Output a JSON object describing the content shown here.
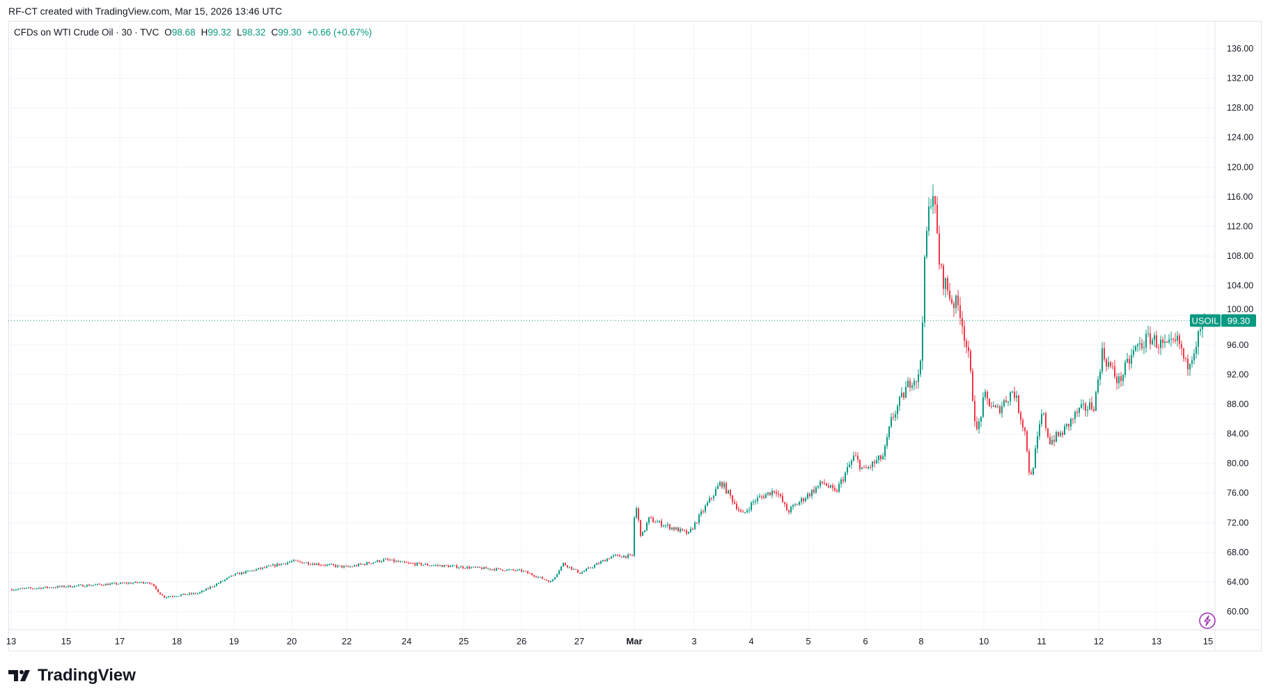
{
  "credit": "RF-CT created with TradingView.com, Mar 15, 2026 13:46 UTC",
  "legend": {
    "symbol": "CFDs on WTI Crude Oil · 30 · TVC",
    "open_label": "O",
    "open": "98.68",
    "high_label": "H",
    "high": "99.32",
    "low_label": "L",
    "low": "98.32",
    "close_label": "C",
    "close": "99.30",
    "change": "+0.66 (+0.67%)"
  },
  "logo": "TradingView",
  "colors": {
    "up": "#089981",
    "down": "#f23645",
    "grid": "#f0f3fa",
    "axis_text": "#131722",
    "alert_icon": "#9c27b0"
  },
  "icons": [
    "lightning-icon",
    "tradingview-logo-icon"
  ],
  "chart_data": {
    "type": "candlestick",
    "interval": "30",
    "symbol": "USOIL",
    "last_price": 99.3,
    "last_price_label": "99.30",
    "price_line": "dotted",
    "grid": true,
    "ylim": [
      58,
      138
    ],
    "y_ticks": [
      "136.00",
      "132.00",
      "128.00",
      "124.00",
      "120.00",
      "116.00",
      "112.00",
      "108.00",
      "104.00",
      "100.00",
      "96.00",
      "92.00",
      "88.00",
      "84.00",
      "80.00",
      "76.00",
      "72.00",
      "68.00",
      "64.00",
      "60.00"
    ],
    "x_ticks": [
      {
        "label": "13",
        "t": "Feb 13 00:00"
      },
      {
        "label": "15",
        "t": "Feb 15 00:00"
      },
      {
        "label": "17",
        "t": "Feb 17 00:00"
      },
      {
        "label": "18",
        "t": "Feb 18 00:00"
      },
      {
        "label": "19",
        "t": "Feb 19 00:00"
      },
      {
        "label": "20",
        "t": "Feb 20 00:00"
      },
      {
        "label": "22",
        "t": "Feb 22 00:00"
      },
      {
        "label": "24",
        "t": "Feb 24 00:00"
      },
      {
        "label": "25",
        "t": "Feb 25 00:00"
      },
      {
        "label": "26",
        "t": "Feb 26 00:00"
      },
      {
        "label": "27",
        "t": "Feb 27 00:00"
      },
      {
        "label": "Mar",
        "t": "Mar 01 00:00"
      },
      {
        "label": "3",
        "t": "Mar 03 00:00"
      },
      {
        "label": "4",
        "t": "Mar 04 00:00"
      },
      {
        "label": "5",
        "t": "Mar 05 00:00"
      },
      {
        "label": "6",
        "t": "Mar 06 00:00"
      },
      {
        "label": "8",
        "t": "Mar 08 00:00"
      },
      {
        "label": "10",
        "t": "Mar 10 00:00"
      },
      {
        "label": "11",
        "t": "Mar 11 00:00"
      },
      {
        "label": "12",
        "t": "Mar 12 00:00"
      },
      {
        "label": "13",
        "t": "Mar 13 00:00"
      },
      {
        "label": "15",
        "t": "Mar 15 00:00"
      }
    ],
    "price_path": [
      [
        "Feb 13 00:00",
        63.0
      ],
      [
        "Feb 17 00:00",
        63.8
      ],
      [
        "Feb 17 12:00",
        64.0
      ],
      [
        "Feb 17 18:00",
        62.0
      ],
      [
        "Feb 18 09:00",
        62.5
      ],
      [
        "Feb 19 00:00",
        65.0
      ],
      [
        "Feb 20 00:00",
        66.8
      ],
      [
        "Feb 22 00:00",
        66.0
      ],
      [
        "Feb 23 06:00",
        67.0
      ],
      [
        "Feb 24 00:00",
        66.5
      ],
      [
        "Feb 25 00:00",
        66.0
      ],
      [
        "Feb 26 00:00",
        65.5
      ],
      [
        "Feb 26 12:00",
        64.0
      ],
      [
        "Feb 26 17:00",
        66.5
      ],
      [
        "Feb 27 00:00",
        65.2
      ],
      [
        "Feb 28 04:00",
        67.5
      ],
      [
        "Feb 28 22:00",
        67.5
      ],
      [
        "Mar 01 00:00",
        75.0
      ],
      [
        "Mar 01 05:00",
        70.0
      ],
      [
        "Mar 01 11:00",
        72.5
      ],
      [
        "Mar 02 19:00",
        70.5
      ],
      [
        "Mar 03 11:00",
        77.5
      ],
      [
        "Mar 03 20:00",
        73.0
      ],
      [
        "Mar 04 01:00",
        75.0
      ],
      [
        "Mar 04 10:00",
        76.5
      ],
      [
        "Mar 04 15:00",
        73.5
      ],
      [
        "Mar 05 06:00",
        77.5
      ],
      [
        "Mar 05 11:00",
        76.0
      ],
      [
        "Mar 05 19:00",
        81.0
      ],
      [
        "Mar 05 23:00",
        79.0
      ],
      [
        "Mar 06 15:00",
        81.0
      ],
      [
        "Mar 06 22:00",
        86.0
      ],
      [
        "Mar 07 15:00",
        91.5
      ],
      [
        "Mar 07 22:00",
        91.5
      ],
      [
        "Mar 08 00:00",
        98.0
      ],
      [
        "Mar 08 03:00",
        110.0
      ],
      [
        "Mar 08 08:00",
        118.0
      ],
      [
        "Mar 08 14:00",
        106.0
      ],
      [
        "Mar 08 23:00",
        102.0
      ],
      [
        "Mar 09 05:00",
        101.0
      ],
      [
        "Mar 09 12:00",
        94.0
      ],
      [
        "Mar 09 18:00",
        84.0
      ],
      [
        "Mar 10 00:00",
        89.0
      ],
      [
        "Mar 10 05:00",
        87.0
      ],
      [
        "Mar 10 12:00",
        90.0
      ],
      [
        "Mar 10 17:00",
        84.0
      ],
      [
        "Mar 10 19:00",
        77.5
      ],
      [
        "Mar 11 00:00",
        87.0
      ],
      [
        "Mar 11 03:00",
        83.0
      ],
      [
        "Mar 11 08:00",
        84.0
      ],
      [
        "Mar 11 15:00",
        87.0
      ],
      [
        "Mar 11 22:00",
        88.0
      ],
      [
        "Mar 12 01:00",
        95.0
      ],
      [
        "Mar 12 08:00",
        91.0
      ],
      [
        "Mar 12 15:00",
        95.5
      ],
      [
        "Mar 12 21:00",
        97.0
      ],
      [
        "Mar 13 09:00",
        95.5
      ],
      [
        "Mar 13 20:00",
        96.5
      ],
      [
        "Mar 14 03:00",
        93.0
      ],
      [
        "Mar 14 14:00",
        97.0
      ],
      [
        "Mar 14 22:00",
        99.3
      ]
    ]
  }
}
